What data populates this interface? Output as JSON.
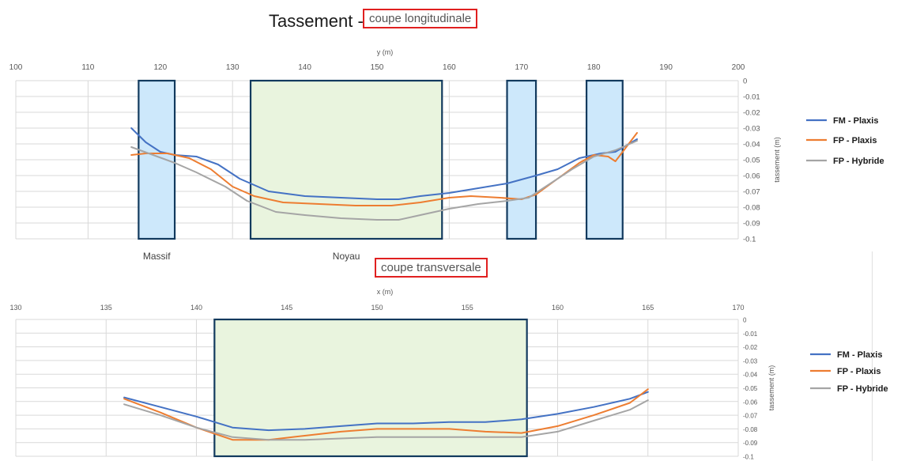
{
  "page": {
    "title_prefix": "Tassement -",
    "top_section_label": "coupe longitudinale",
    "bottom_section_label": "coupe transversale"
  },
  "chart_data": [
    {
      "type": "line",
      "xlabel": "y (m)",
      "ylabel": "tassement (m)",
      "xlim": [
        100,
        200
      ],
      "ylim": [
        -0.1,
        0
      ],
      "xticks": [
        100,
        110,
        120,
        130,
        140,
        150,
        160,
        170,
        180,
        190,
        200
      ],
      "yticks": [
        0,
        -0.01,
        -0.02,
        -0.03,
        -0.04,
        -0.05,
        -0.06,
        -0.07,
        -0.08,
        -0.09,
        -0.1
      ],
      "x_axis_position": "top",
      "y_axis_position": "right",
      "grid": true,
      "legend_position": "right",
      "series": [
        {
          "name": "FM - Plaxis",
          "color": "#4472c4",
          "points": [
            [
              116,
              -0.03
            ],
            [
              118,
              -0.039
            ],
            [
              120,
              -0.045
            ],
            [
              122,
              -0.047
            ],
            [
              125,
              -0.048
            ],
            [
              128,
              -0.053
            ],
            [
              131,
              -0.062
            ],
            [
              135,
              -0.07
            ],
            [
              140,
              -0.073
            ],
            [
              145,
              -0.074
            ],
            [
              150,
              -0.075
            ],
            [
              153,
              -0.075
            ],
            [
              156,
              -0.073
            ],
            [
              160,
              -0.071
            ],
            [
              164,
              -0.068
            ],
            [
              168,
              -0.065
            ],
            [
              172,
              -0.06
            ],
            [
              175,
              -0.056
            ],
            [
              178,
              -0.049
            ],
            [
              181,
              -0.046
            ],
            [
              183,
              -0.045
            ],
            [
              186,
              -0.037
            ]
          ]
        },
        {
          "name": "FP - Plaxis",
          "color": "#ed7d31",
          "points": [
            [
              116,
              -0.047
            ],
            [
              118,
              -0.046
            ],
            [
              121,
              -0.046
            ],
            [
              124,
              -0.049
            ],
            [
              127,
              -0.056
            ],
            [
              130,
              -0.067
            ],
            [
              133,
              -0.073
            ],
            [
              137,
              -0.077
            ],
            [
              142,
              -0.078
            ],
            [
              147,
              -0.079
            ],
            [
              152,
              -0.079
            ],
            [
              156,
              -0.077
            ],
            [
              160,
              -0.074
            ],
            [
              163,
              -0.073
            ],
            [
              167,
              -0.074
            ],
            [
              170,
              -0.075
            ],
            [
              172,
              -0.072
            ],
            [
              175,
              -0.062
            ],
            [
              178,
              -0.052
            ],
            [
              180,
              -0.047
            ],
            [
              182,
              -0.048
            ],
            [
              183,
              -0.051
            ],
            [
              184,
              -0.045
            ],
            [
              186,
              -0.033
            ]
          ]
        },
        {
          "name": "FP - Hybride",
          "color": "#a5a5a5",
          "points": [
            [
              116,
              -0.042
            ],
            [
              119,
              -0.047
            ],
            [
              122,
              -0.052
            ],
            [
              125,
              -0.058
            ],
            [
              129,
              -0.067
            ],
            [
              132,
              -0.076
            ],
            [
              136,
              -0.083
            ],
            [
              140,
              -0.085
            ],
            [
              145,
              -0.087
            ],
            [
              150,
              -0.088
            ],
            [
              153,
              -0.088
            ],
            [
              156,
              -0.085
            ],
            [
              160,
              -0.081
            ],
            [
              164,
              -0.078
            ],
            [
              168,
              -0.076
            ],
            [
              171,
              -0.074
            ],
            [
              174,
              -0.065
            ],
            [
              177,
              -0.056
            ],
            [
              180,
              -0.048
            ],
            [
              183,
              -0.044
            ],
            [
              186,
              -0.038
            ]
          ]
        }
      ],
      "regions": [
        {
          "x0": 117,
          "x1": 122,
          "fill": "#cde8fb",
          "stroke": "#123a5e",
          "label": "Massif"
        },
        {
          "x0": 132.5,
          "x1": 159,
          "fill": "#e9f4de",
          "stroke": "#123a5e",
          "label": "Noyau"
        },
        {
          "x0": 168,
          "x1": 172,
          "fill": "#cde8fb",
          "stroke": "#123a5e",
          "label": ""
        },
        {
          "x0": 179,
          "x1": 184,
          "fill": "#cde8fb",
          "stroke": "#123a5e",
          "label": ""
        }
      ]
    },
    {
      "type": "line",
      "xlabel": "x (m)",
      "ylabel": "tassement (m)",
      "xlim": [
        130,
        170
      ],
      "ylim": [
        -0.1,
        0
      ],
      "xticks": [
        130,
        135,
        140,
        145,
        150,
        155,
        160,
        165,
        170
      ],
      "yticks": [
        0,
        -0.01,
        -0.02,
        -0.03,
        -0.04,
        -0.05,
        -0.06,
        -0.07,
        -0.08,
        -0.09,
        -0.1
      ],
      "x_axis_position": "top",
      "y_axis_position": "right",
      "grid": true,
      "legend_position": "right",
      "series": [
        {
          "name": "FM - Plaxis",
          "color": "#4472c4",
          "points": [
            [
              136,
              -0.057
            ],
            [
              138,
              -0.064
            ],
            [
              140,
              -0.071
            ],
            [
              142,
              -0.079
            ],
            [
              144,
              -0.081
            ],
            [
              146,
              -0.08
            ],
            [
              148,
              -0.078
            ],
            [
              150,
              -0.076
            ],
            [
              152,
              -0.076
            ],
            [
              154,
              -0.075
            ],
            [
              156,
              -0.075
            ],
            [
              158,
              -0.073
            ],
            [
              160,
              -0.069
            ],
            [
              162,
              -0.064
            ],
            [
              164,
              -0.058
            ],
            [
              165,
              -0.053
            ]
          ]
        },
        {
          "name": "FP - Plaxis",
          "color": "#ed7d31",
          "points": [
            [
              136,
              -0.058
            ],
            [
              138,
              -0.068
            ],
            [
              140,
              -0.079
            ],
            [
              142,
              -0.088
            ],
            [
              144,
              -0.088
            ],
            [
              146,
              -0.085
            ],
            [
              148,
              -0.082
            ],
            [
              150,
              -0.08
            ],
            [
              152,
              -0.08
            ],
            [
              154,
              -0.08
            ],
            [
              156,
              -0.082
            ],
            [
              158,
              -0.083
            ],
            [
              160,
              -0.078
            ],
            [
              162,
              -0.07
            ],
            [
              164,
              -0.061
            ],
            [
              165,
              -0.051
            ]
          ]
        },
        {
          "name": "FP - Hybride",
          "color": "#a5a5a5",
          "points": [
            [
              136,
              -0.062
            ],
            [
              138,
              -0.07
            ],
            [
              140,
              -0.079
            ],
            [
              142,
              -0.086
            ],
            [
              144,
              -0.088
            ],
            [
              146,
              -0.088
            ],
            [
              148,
              -0.087
            ],
            [
              150,
              -0.086
            ],
            [
              152,
              -0.086
            ],
            [
              154,
              -0.086
            ],
            [
              156,
              -0.086
            ],
            [
              158,
              -0.086
            ],
            [
              160,
              -0.082
            ],
            [
              162,
              -0.074
            ],
            [
              164,
              -0.066
            ],
            [
              165,
              -0.059
            ]
          ]
        }
      ],
      "regions": [
        {
          "x0": 141,
          "x1": 158.3,
          "fill": "#e9f4de",
          "stroke": "#123a5e",
          "label": ""
        }
      ]
    }
  ]
}
